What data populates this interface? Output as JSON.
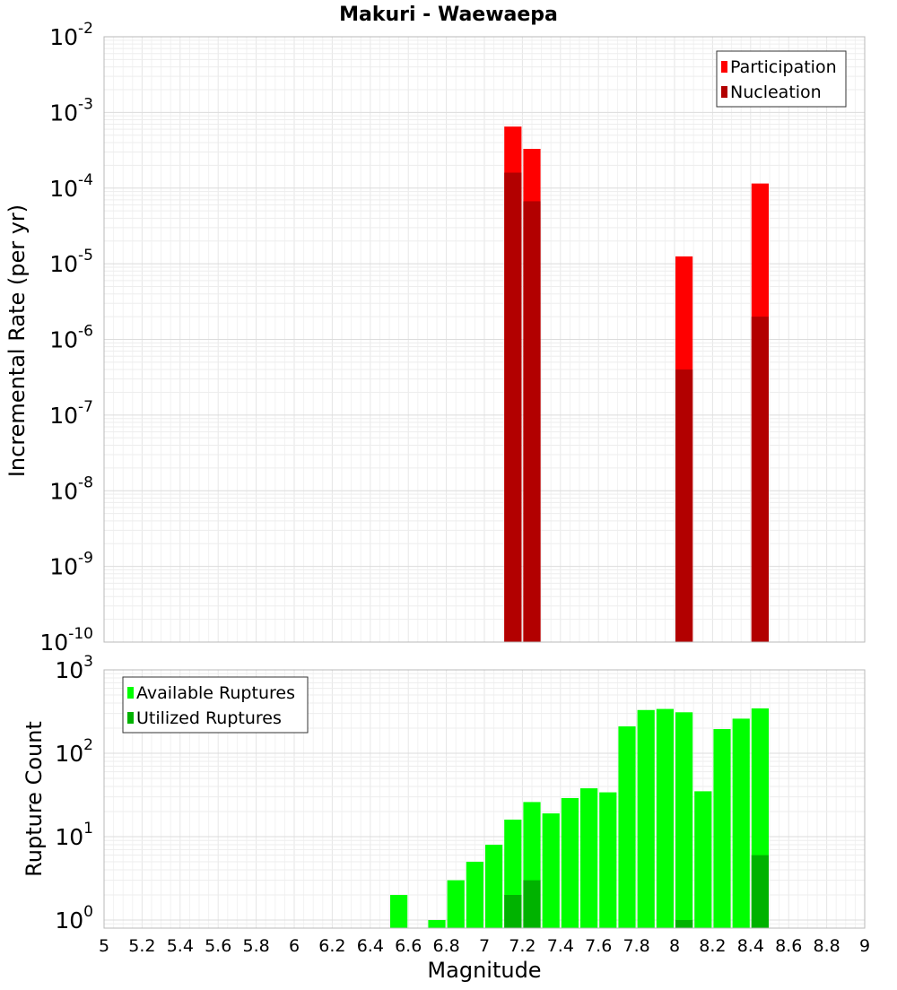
{
  "chart_data": [
    {
      "type": "bar",
      "title": "Makuri - Waewaepa",
      "xlabel": "Magnitude",
      "ylabel": "Incremental Rate (per yr)",
      "xlim": [
        5,
        9
      ],
      "ylim": [
        1e-10,
        0.01
      ],
      "yscale": "log",
      "grid": true,
      "legend_position": "top-right",
      "x_ticks": [
        "5",
        "5.2",
        "5.4",
        "5.6",
        "5.8",
        "6",
        "6.2",
        "6.4",
        "6.6",
        "6.8",
        "7",
        "7.2",
        "7.4",
        "7.6",
        "7.8",
        "8",
        "8.2",
        "8.4",
        "8.6",
        "8.8",
        "9"
      ],
      "y_ticks": [
        {
          "mant": "10",
          "exp": "-10"
        },
        {
          "mant": "10",
          "exp": "-9"
        },
        {
          "mant": "10",
          "exp": "-8"
        },
        {
          "mant": "10",
          "exp": "-7"
        },
        {
          "mant": "10",
          "exp": "-6"
        },
        {
          "mant": "10",
          "exp": "-5"
        },
        {
          "mant": "10",
          "exp": "-4"
        },
        {
          "mant": "10",
          "exp": "-3"
        },
        {
          "mant": "10",
          "exp": "-2"
        }
      ],
      "series": [
        {
          "name": "Participation",
          "color": "#ff0000",
          "x": [
            7.15,
            7.25,
            8.05,
            8.45
          ],
          "values": [
            0.00065,
            0.00033,
            1.25e-05,
            0.000115
          ]
        },
        {
          "name": "Nucleation",
          "color": "#b20000",
          "x": [
            7.15,
            7.25,
            8.05,
            8.45
          ],
          "values": [
            0.00016,
            6.7e-05,
            4e-07,
            2e-06
          ]
        }
      ]
    },
    {
      "type": "bar",
      "xlabel": "Magnitude",
      "ylabel": "Rupture Count",
      "xlim": [
        5,
        9
      ],
      "ylim": [
        0.8,
        1000
      ],
      "yscale": "log",
      "grid": true,
      "legend_position": "top-left",
      "y_ticks": [
        {
          "mant": "10",
          "exp": "0"
        },
        {
          "mant": "10",
          "exp": "1"
        },
        {
          "mant": "10",
          "exp": "2"
        },
        {
          "mant": "10",
          "exp": "3"
        }
      ],
      "series": [
        {
          "name": "Available Ruptures",
          "color": "#00ff00",
          "x": [
            6.55,
            6.75,
            6.85,
            6.95,
            7.05,
            7.15,
            7.25,
            7.35,
            7.45,
            7.55,
            7.65,
            7.75,
            7.85,
            7.95,
            8.05,
            8.15,
            8.25,
            8.35,
            8.45
          ],
          "values": [
            2,
            1,
            3,
            5,
            8,
            16,
            26,
            19,
            29,
            38,
            34,
            210,
            330,
            340,
            310,
            35,
            195,
            260,
            345
          ]
        },
        {
          "name": "Utilized Ruptures",
          "color": "#00b200",
          "x": [
            7.15,
            7.25,
            8.05,
            8.45
          ],
          "values": [
            2,
            3,
            1,
            6
          ]
        }
      ]
    }
  ]
}
